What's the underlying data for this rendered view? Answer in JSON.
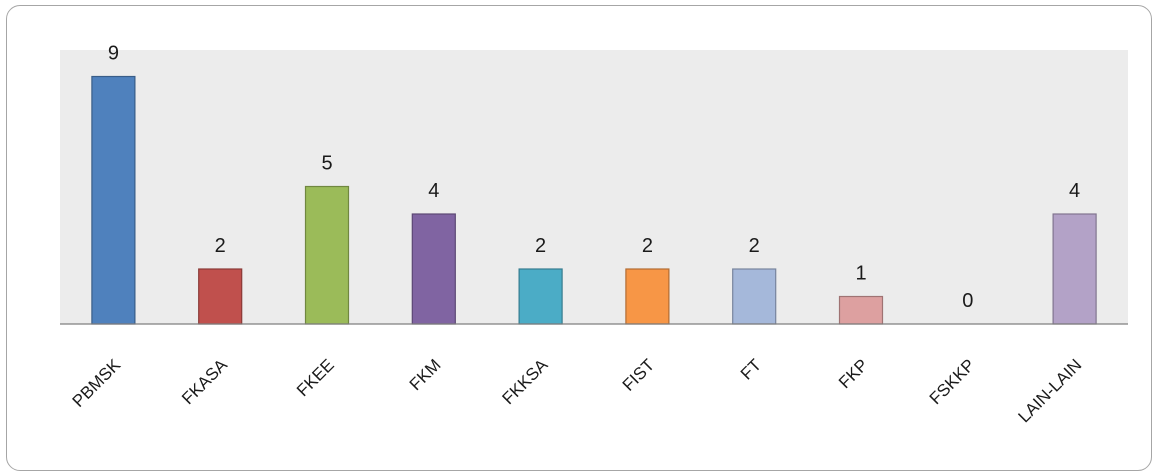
{
  "chart_data": {
    "type": "bar",
    "title": "",
    "xlabel": "",
    "ylabel": "",
    "categories": [
      "PBMSK",
      "FKASA",
      "FKEE",
      "FKM",
      "FKKSA",
      "FIST",
      "FT",
      "FKP",
      "FSKKP",
      "LAIN-LAIN"
    ],
    "values": [
      9,
      2,
      5,
      4,
      2,
      2,
      2,
      1,
      0,
      4
    ],
    "data_labels": [
      "9",
      "2",
      "5",
      "4",
      "2",
      "2",
      "2",
      "1",
      "0",
      "4"
    ],
    "ylim": [
      0,
      10
    ],
    "grid": false,
    "legend": "none",
    "colors": [
      "#4f81bd",
      "#c0504d",
      "#9bbb59",
      "#8064a2",
      "#4bacc6",
      "#f79646",
      "#a5b8da",
      "#dda0a0",
      "#cccccc",
      "#b3a2c7"
    ],
    "plot_background": "#ececec"
  }
}
